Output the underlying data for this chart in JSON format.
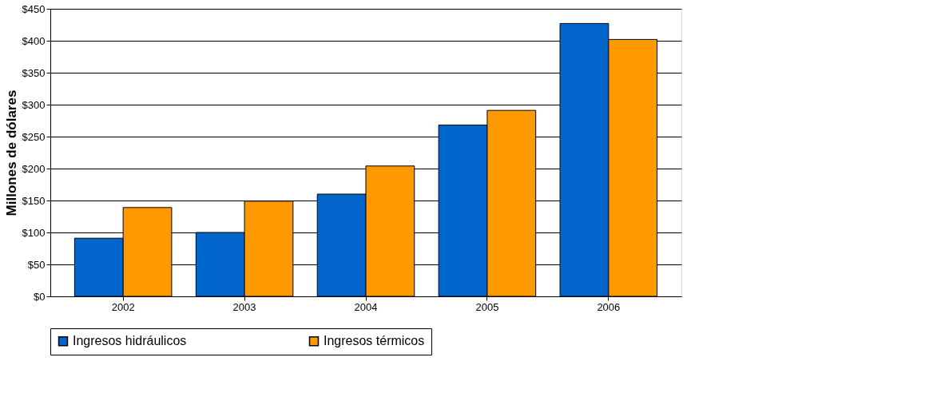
{
  "chart_data": {
    "type": "bar",
    "ylabel": "Millones de dólares",
    "categories": [
      "2002",
      "2003",
      "2004",
      "2005",
      "2006"
    ],
    "series": [
      {
        "name": "Ingresos hidráulicos",
        "color": "#0066cc",
        "values": [
          91,
          100,
          160,
          268,
          427
        ]
      },
      {
        "name": "Ingresos térmicos",
        "color": "#ff9900",
        "values": [
          139,
          149,
          204,
          291,
          402
        ]
      }
    ],
    "ylim": [
      0,
      450
    ],
    "yticks": [
      {
        "value": 0,
        "label": "$0"
      },
      {
        "value": 50,
        "label": "$50"
      },
      {
        "value": 100,
        "label": "$100"
      },
      {
        "value": 150,
        "label": "$150"
      },
      {
        "value": 200,
        "label": "$200"
      },
      {
        "value": 250,
        "label": "$250"
      },
      {
        "value": 300,
        "label": "$300"
      },
      {
        "value": 350,
        "label": "$350"
      },
      {
        "value": 400,
        "label": "$400"
      },
      {
        "value": 450,
        "label": "$450"
      }
    ],
    "grid": "y",
    "legend": "bottom"
  }
}
